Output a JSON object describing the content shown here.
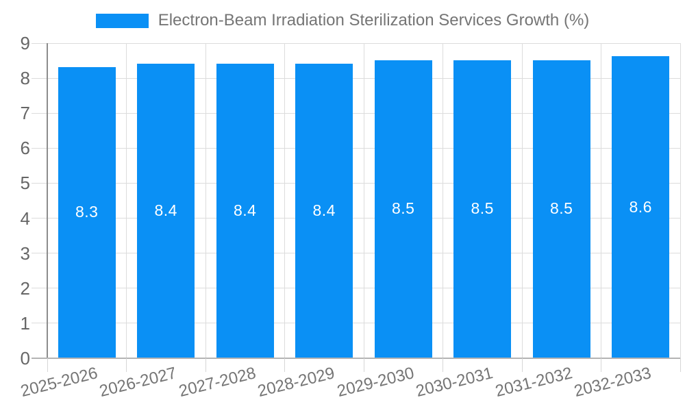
{
  "legend": {
    "label": "Electron-Beam Irradiation Sterilization Services Growth (%)"
  },
  "chart_data": {
    "type": "bar",
    "title": "Electron-Beam Irradiation Sterilization Services Growth (%)",
    "categories": [
      "2025-2026",
      "2026-2027",
      "2027-2028",
      "2028-2029",
      "2029-2030",
      "2030-2031",
      "2031-2032",
      "2032-2033"
    ],
    "values": [
      8.3,
      8.4,
      8.4,
      8.4,
      8.5,
      8.5,
      8.5,
      8.6
    ],
    "value_labels": [
      "8.3",
      "8.4",
      "8.4",
      "8.4",
      "8.5",
      "8.5",
      "8.5",
      "8.6"
    ],
    "ytick_labels": [
      "0",
      "1",
      "2",
      "3",
      "4",
      "5",
      "6",
      "7",
      "8",
      "9"
    ],
    "ylim": [
      0,
      9
    ],
    "ytick_step": 1,
    "grid": true,
    "legend_position": "top",
    "xlabel": "",
    "ylabel": ""
  },
  "colors": {
    "bar": "#0a90f5",
    "bar_value_text": "#ffffff",
    "gridline": "#dcdcdc",
    "tick": "#d6d6d6",
    "y_axis_line": "#8c8c8c",
    "x_axis_line": "#b3b3b3",
    "axis_text": "#666666",
    "category_text": "#757575",
    "legend_text": "#757575"
  }
}
